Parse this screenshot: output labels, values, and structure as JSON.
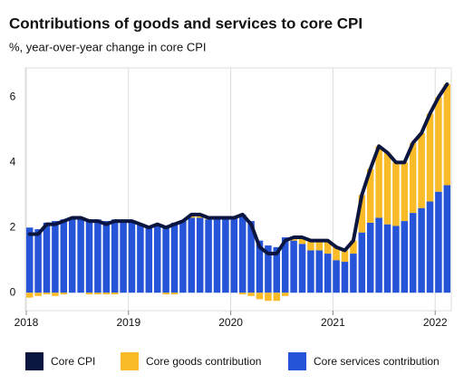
{
  "chart_data": {
    "type": "stacked-bar-line",
    "title": "Contributions of goods and services to core CPI",
    "subtitle": "%, year-over-year change in core CPI",
    "categories": [
      "2018",
      null,
      null,
      null,
      null,
      null,
      null,
      null,
      null,
      null,
      null,
      null,
      "2019",
      null,
      null,
      null,
      null,
      null,
      null,
      null,
      null,
      null,
      null,
      null,
      "2020",
      null,
      null,
      null,
      null,
      null,
      null,
      null,
      null,
      null,
      null,
      null,
      "2021",
      null,
      null,
      null,
      null,
      null,
      null,
      null,
      null,
      null,
      null,
      null,
      "2022",
      null
    ],
    "ylim": [
      -0.55,
      6.9
    ],
    "yticks": [
      0,
      2,
      4,
      6
    ],
    "grid": true,
    "series": [
      {
        "name": "Core CPI",
        "kind": "line",
        "color": "#0b1640",
        "values": [
          1.8,
          1.8,
          2.1,
          2.1,
          2.2,
          2.3,
          2.3,
          2.2,
          2.2,
          2.1,
          2.2,
          2.2,
          2.2,
          2.1,
          2.0,
          2.1,
          2.0,
          2.1,
          2.2,
          2.4,
          2.4,
          2.3,
          2.3,
          2.3,
          2.3,
          2.4,
          2.1,
          1.4,
          1.2,
          1.2,
          1.6,
          1.7,
          1.7,
          1.6,
          1.6,
          1.6,
          1.4,
          1.3,
          1.6,
          3.0,
          3.8,
          4.5,
          4.3,
          4.0,
          4.0,
          4.6,
          4.9,
          5.5,
          6.0,
          6.4
        ]
      },
      {
        "name": "Core goods contribution",
        "kind": "bar",
        "color": "#f9bc28",
        "values": [
          -0.15,
          -0.1,
          -0.05,
          -0.1,
          -0.05,
          0,
          0,
          -0.05,
          -0.05,
          -0.05,
          -0.05,
          0,
          0,
          0,
          0,
          0,
          -0.05,
          -0.05,
          0,
          0.1,
          0.1,
          0.05,
          0.05,
          0.05,
          0,
          -0.05,
          -0.1,
          -0.2,
          -0.25,
          -0.25,
          -0.1,
          0.1,
          0.2,
          0.3,
          0.3,
          0.4,
          0.4,
          0.35,
          0.4,
          1.15,
          1.65,
          2.2,
          2.2,
          1.95,
          1.8,
          2.15,
          2.3,
          2.7,
          2.9,
          3.1
        ]
      },
      {
        "name": "Core services contribution",
        "kind": "bar",
        "color": "#2554d8",
        "values": [
          2.0,
          1.95,
          2.15,
          2.2,
          2.25,
          2.3,
          2.3,
          2.25,
          2.25,
          2.2,
          2.25,
          2.2,
          2.2,
          2.1,
          2.0,
          2.1,
          2.05,
          2.15,
          2.2,
          2.3,
          2.3,
          2.25,
          2.25,
          2.25,
          2.3,
          2.4,
          2.2,
          1.6,
          1.45,
          1.4,
          1.7,
          1.6,
          1.5,
          1.3,
          1.3,
          1.2,
          1.0,
          0.95,
          1.2,
          1.85,
          2.15,
          2.3,
          2.1,
          2.05,
          2.2,
          2.45,
          2.6,
          2.8,
          3.1,
          3.3
        ]
      }
    ]
  }
}
